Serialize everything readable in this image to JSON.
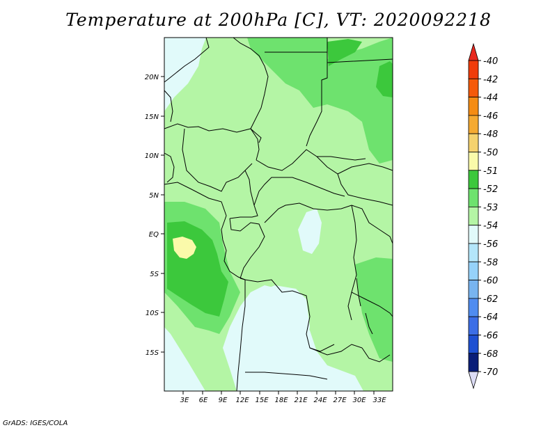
{
  "title": "Temperature at 200hPa [C], VT: 2020092218",
  "footer": "GrADS: IGES/COLA",
  "map": {
    "lat_range": [
      -20,
      25
    ],
    "lon_range": [
      0,
      36
    ],
    "lat_ticks": [
      "20N",
      "15N",
      "10N",
      "5N",
      "EQ",
      "5S",
      "10S",
      "15S"
    ],
    "lon_ticks": [
      "3E",
      "6E",
      "9E",
      "12E",
      "15E",
      "18E",
      "21E",
      "24E",
      "27E",
      "30E",
      "33E"
    ]
  },
  "legend": {
    "labels": [
      "-40",
      "-42",
      "-44",
      "-46",
      "-48",
      "-50",
      "-51",
      "-52",
      "-53",
      "-54",
      "-56",
      "-58",
      "-60",
      "-62",
      "-64",
      "-66",
      "-68",
      "-70"
    ],
    "colors": {
      "top_arrow": "#e8281e",
      "bottom_arrow": "#dcdcf5",
      "bins": [
        "#f03c0a",
        "#f55a0a",
        "#f58c14",
        "#f5aa32",
        "#f5d26e",
        "#fafaaa",
        "#3cc83c",
        "#6ee26e",
        "#b4f5a5",
        "#e1fafa",
        "#b4e6fa",
        "#96d2fa",
        "#78b4f0",
        "#508cf0",
        "#3c6ee6",
        "#1e50d2",
        "#0a1e78"
      ]
    }
  },
  "field_colors": {
    "ocean_cold": "#e1fafa",
    "light_green": "#b4f5a5",
    "mid_green": "#6ee26e",
    "dark_green": "#3cc83c",
    "warm_patch": "#fafaaa"
  }
}
